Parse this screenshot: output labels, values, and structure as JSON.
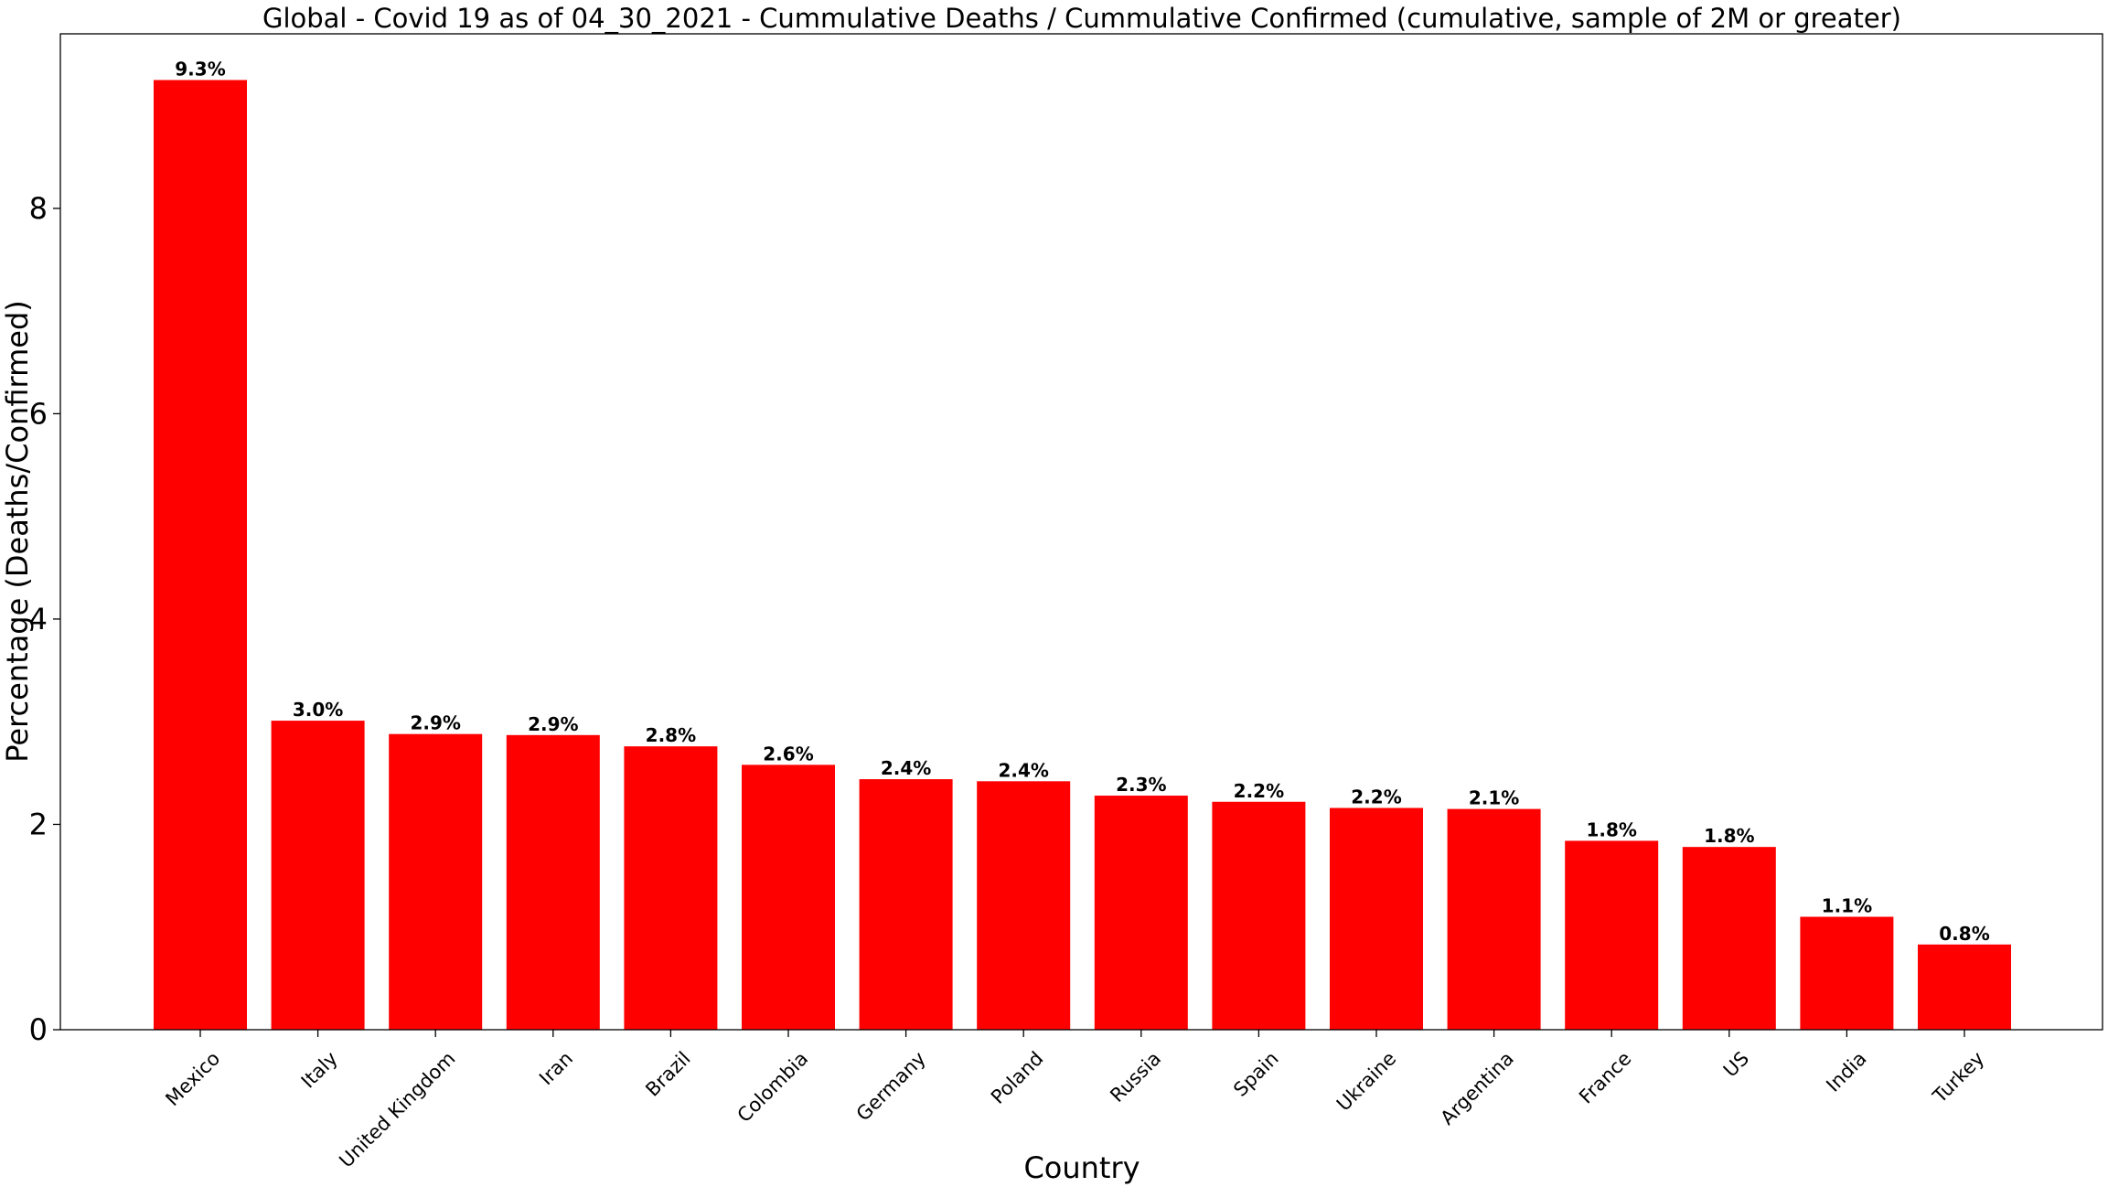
{
  "chart_data": {
    "type": "bar",
    "title": "Global - Covid 19 as of 04_30_2021 - Cummulative Deaths / Cummulative Confirmed (cumulative, sample of 2M or greater)",
    "xlabel": "Country",
    "ylabel": "Percentage (Deaths/Confirmed)",
    "ylim": [
      0,
      9.7
    ],
    "yticks": [
      0,
      2,
      4,
      6,
      8
    ],
    "grid": false,
    "bar_color": "#ff0000",
    "categories": [
      "Mexico",
      "Italy",
      "United Kingdom",
      "Iran",
      "Brazil",
      "Colombia",
      "Germany",
      "Poland",
      "Russia",
      "Spain",
      "Ukraine",
      "Argentina",
      "France",
      "US",
      "India",
      "Turkey"
    ],
    "values": [
      9.25,
      3.01,
      2.88,
      2.87,
      2.76,
      2.58,
      2.44,
      2.42,
      2.28,
      2.22,
      2.16,
      2.15,
      1.84,
      1.78,
      1.1,
      0.83
    ],
    "data_labels": [
      "9.3%",
      "3.0%",
      "2.9%",
      "2.9%",
      "2.8%",
      "2.6%",
      "2.4%",
      "2.4%",
      "2.3%",
      "2.2%",
      "2.2%",
      "2.1%",
      "1.8%",
      "1.8%",
      "1.1%",
      "0.8%"
    ]
  }
}
